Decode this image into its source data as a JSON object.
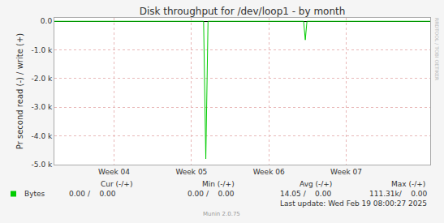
{
  "chart_data": {
    "type": "line",
    "title": "Disk throughput for /dev/loop1 - by month",
    "y_label": "Pr second read (-) / write (+)",
    "x": [
      0,
      13.5,
      13.7,
      13.9,
      22.55,
      22.7,
      22.85,
      34
    ],
    "series": [
      {
        "name": "Bytes",
        "color": "#00cc00",
        "values": [
          0,
          0,
          -4800,
          0,
          0,
          -650,
          0,
          0
        ],
        "stats": [
          "0.00 /    0.00",
          "0.00 /    0.00",
          "14.05 /    0.00",
          "111.31k/    0.00"
        ]
      }
    ],
    "stats_columns": [
      "Cur (-/+)",
      "Min (-/+)",
      "Avg (-/+)",
      "Max (-/+)"
    ],
    "xlim": [
      0,
      34
    ],
    "xticks": [
      {
        "value": 5.4,
        "label": "Week 04"
      },
      {
        "value": 12.4,
        "label": "Week 05"
      },
      {
        "value": 19.4,
        "label": "Week 06"
      },
      {
        "value": 26.4,
        "label": "Week 07"
      }
    ],
    "ylim": [
      -5000,
      120
    ],
    "yticks": [
      {
        "value": -5000,
        "label": "-5.0 k"
      },
      {
        "value": -4000,
        "label": "-4.0 k"
      },
      {
        "value": -3000,
        "label": "-3.0 k"
      },
      {
        "value": -2000,
        "label": "-2.0 k"
      },
      {
        "value": -1000,
        "label": "-1.0 k"
      },
      {
        "value": 0,
        "label": "0.0"
      }
    ],
    "grid": true,
    "annotations": [
      "Last update: Wed Feb 19 08:00:27 2025",
      "Munin 2.0.75",
      "RRDTOOL / TOBI OETIKER"
    ]
  }
}
